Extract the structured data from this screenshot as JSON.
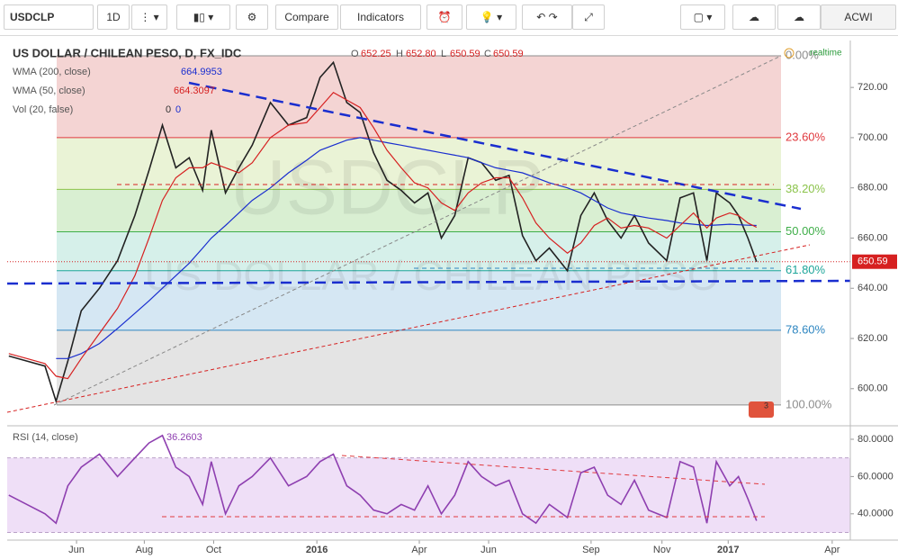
{
  "toolbar": {
    "symbol": "USDCLP",
    "interval": "1D",
    "compare": "Compare",
    "indicators": "Indicators",
    "watchlist": "ACWI"
  },
  "chart_data": [
    {
      "type": "line",
      "title": "US DOLLAR / CHILEAN PESO, D, FX_IDC",
      "watermark": "USDCLP",
      "watermark_sub": "US DOLLAR / CHILEAN PESO",
      "realtime": "realtime",
      "badge": "3",
      "ohlc_keys": [
        "O",
        "H",
        "L",
        "C"
      ],
      "ohlc": [
        "652.25",
        "652.80",
        "650.59",
        "650.59"
      ],
      "indicators_legend": [
        {
          "name": "Vol (20, false)",
          "values": [
            "0",
            "0"
          ]
        }
      ],
      "x": [
        0.2,
        2.5,
        4.8,
        6.2,
        7.7,
        9.4,
        11.7,
        14,
        16.2,
        18,
        19.7,
        21.4,
        23.1,
        24.8,
        25.9,
        27.7,
        29.4,
        31.1,
        33.4,
        35.7,
        38,
        39.7,
        41.4,
        43.1,
        44.8,
        46.5,
        48.2,
        50,
        51.7,
        53.4,
        55.1,
        56.8,
        58.5,
        60.2,
        62,
        63.7,
        65.4,
        67.1,
        68.8,
        71.1,
        72.8,
        74.5,
        76.2,
        77.9,
        79.6,
        81.4,
        83.7,
        85.4,
        87.1,
        88.8,
        90,
        91.7,
        92.8,
        94,
        95.1
      ],
      "xlim": [
        0,
        107
      ],
      "series": [
        {
          "name": "USDCLP",
          "color": "#222222",
          "values": [
            613,
            611,
            609,
            595,
            611,
            631,
            640,
            651,
            669,
            687,
            705,
            688,
            692,
            679,
            703,
            678,
            688,
            697,
            714,
            705,
            708,
            724,
            730,
            714,
            710,
            694,
            683,
            679,
            674,
            678,
            660,
            669,
            692,
            690,
            683,
            685,
            661,
            651,
            656,
            647,
            669,
            678,
            667,
            660,
            669,
            658,
            651,
            676,
            678,
            651,
            678,
            674,
            669,
            660,
            650.59
          ]
        },
        {
          "name": "WMA (200, close)",
          "color": "#1a2ecf",
          "value_label": "664.9953",
          "values": [
            null,
            null,
            null,
            612,
            612,
            614,
            618,
            624,
            630,
            635,
            640,
            645,
            650,
            656,
            660,
            665,
            670,
            675,
            680,
            686,
            691,
            695,
            697,
            699,
            700,
            699,
            698,
            697,
            696,
            695,
            694,
            693,
            692,
            690,
            688,
            687,
            686,
            684,
            682,
            680,
            678,
            675,
            672,
            670,
            669,
            668,
            667,
            666,
            665.5,
            665,
            665.2,
            665.5,
            665.3,
            665.1,
            664.9953
          ]
        },
        {
          "name": "WMA (50, close)",
          "color": "#d62020",
          "value_label": "664.3097",
          "values": [
            614,
            612,
            610,
            605,
            604,
            612,
            622,
            632,
            645,
            660,
            675,
            684,
            688,
            688,
            690,
            688,
            686,
            690,
            700,
            705,
            706,
            712,
            718,
            715,
            712,
            704,
            695,
            688,
            682,
            680,
            674,
            671,
            678,
            682,
            684,
            684,
            676,
            666,
            660,
            654,
            658,
            665,
            668,
            664,
            665,
            664,
            660,
            665,
            670,
            664,
            668,
            670,
            669,
            666,
            664.3097
          ]
        }
      ],
      "ylim": [
        586.3,
        738.7
      ],
      "yticks": [
        {
          "value": 600,
          "label": "600.00"
        },
        {
          "value": 620,
          "label": "620.00"
        },
        {
          "value": 640,
          "label": "640.00"
        },
        {
          "value": 660,
          "label": "660.00"
        },
        {
          "value": 680,
          "label": "680.00"
        },
        {
          "value": 700,
          "label": "700.00"
        },
        {
          "value": 720,
          "label": "720.00"
        }
      ],
      "fib_levels": [
        {
          "label": "0.00%",
          "value": 732.6,
          "color": "#8d8d8d"
        },
        {
          "label": "23.60%",
          "value": 700,
          "color": "#e0393e"
        },
        {
          "label": "38.20%",
          "value": 679.4,
          "color": "#8bc34a"
        },
        {
          "label": "50.00%",
          "value": 662.5,
          "color": "#3fae49"
        },
        {
          "label": "61.80%",
          "value": 647,
          "color": "#1ea59a"
        },
        {
          "label": "78.60%",
          "value": 623.3,
          "color": "#2e86c1"
        },
        {
          "label": "100.00%",
          "value": 593.5,
          "color": "#8d8d8d"
        }
      ],
      "fib_fills": [
        "#f4d4d3",
        "#eaf3d6",
        "#d9efd2",
        "#d6f0ea",
        "#d5e7f3",
        "#e4e4e4"
      ]
    },
    {
      "type": "line",
      "title": "RSI (14, close)",
      "x": [
        0.2,
        2.5,
        4.8,
        6.2,
        7.7,
        9.4,
        11.7,
        14,
        16.2,
        18,
        19.7,
        21.4,
        23.1,
        24.8,
        25.9,
        27.7,
        29.4,
        31.1,
        33.4,
        35.7,
        38,
        39.7,
        41.4,
        43.1,
        44.8,
        46.5,
        48.2,
        50,
        51.7,
        53.4,
        55.1,
        56.8,
        58.5,
        60.2,
        62,
        63.7,
        65.4,
        67.1,
        68.8,
        71.1,
        72.8,
        74.5,
        76.2,
        77.9,
        79.6,
        81.4,
        83.7,
        85.4,
        87.1,
        88.8,
        90,
        91.7,
        92.8,
        94,
        95.1
      ],
      "xlim": [
        0,
        107
      ],
      "series": [
        {
          "name": "RSI",
          "color": "#8e3fb0",
          "value_label": "36.2603",
          "values": [
            50,
            45,
            40,
            35,
            55,
            65,
            72,
            60,
            70,
            78,
            82,
            65,
            60,
            45,
            68,
            40,
            55,
            60,
            70,
            55,
            60,
            68,
            72,
            55,
            50,
            42,
            40,
            45,
            42,
            55,
            40,
            50,
            68,
            60,
            55,
            58,
            40,
            35,
            45,
            38,
            62,
            65,
            50,
            45,
            58,
            42,
            38,
            68,
            65,
            35,
            68,
            55,
            60,
            48,
            36.2603
          ]
        }
      ],
      "band": [
        30,
        70
      ],
      "band_color": "#efdff7",
      "ylim": [
        25.9,
        85.3
      ],
      "yticks": [
        {
          "value": 40,
          "label": "40.0000"
        },
        {
          "value": 60,
          "label": "60.0000"
        },
        {
          "value": 80,
          "label": "80.0000"
        }
      ],
      "xticks": [
        {
          "value": 8.8,
          "label": "Jun"
        },
        {
          "value": 17.4,
          "label": "Aug"
        },
        {
          "value": 26.2,
          "label": "Oct"
        },
        {
          "value": 39.3,
          "label": "2016"
        },
        {
          "value": 52.3,
          "label": "Apr"
        },
        {
          "value": 61.1,
          "label": "Jun"
        },
        {
          "value": 74.1,
          "label": "Sep"
        },
        {
          "value": 83.1,
          "label": "Nov"
        },
        {
          "value": 91.5,
          "label": "2017"
        },
        {
          "value": 104.7,
          "label": "Apr"
        }
      ]
    }
  ]
}
